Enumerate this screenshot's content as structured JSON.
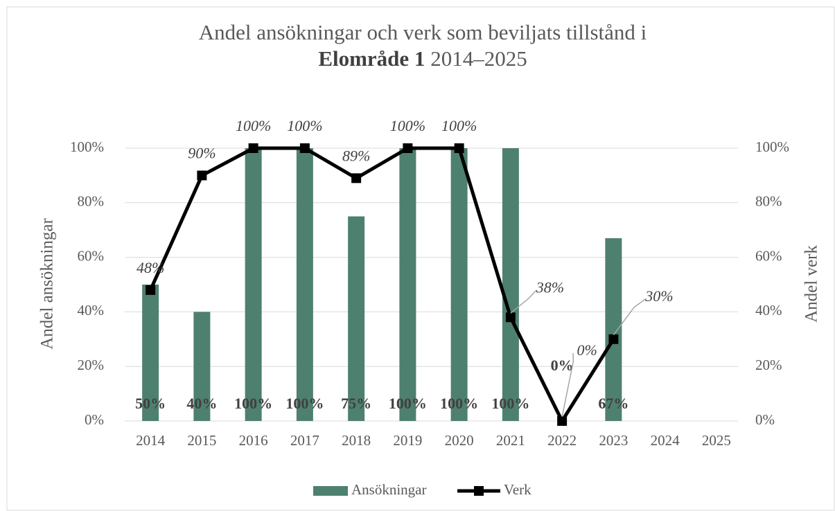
{
  "chart_data": {
    "type": "bar-line",
    "title": "Andel ansökningar och verk som beviljats tillstånd i",
    "title_bold": "Elområde 1",
    "title_rest": "2014–2025",
    "y_label": "Andel ansökningar",
    "y2_label": "Andel verk",
    "categories": [
      "2014",
      "2015",
      "2016",
      "2017",
      "2018",
      "2019",
      "2020",
      "2021",
      "2022",
      "2023",
      "2024",
      "2025"
    ],
    "series": [
      {
        "name": "Ansökningar",
        "type": "bar",
        "color": "#4e8070",
        "values": [
          50,
          40,
          100,
          100,
          75,
          100,
          100,
          100,
          0,
          67,
          null,
          null
        ],
        "value_labels": [
          "50%",
          "40%",
          "100%",
          "100%",
          "75%",
          "100%",
          "100%",
          "100%",
          "0%",
          "67%",
          null,
          null
        ]
      },
      {
        "name": "Verk",
        "type": "line",
        "axis": "y2",
        "color": "#000000",
        "values": [
          48,
          90,
          100,
          100,
          89,
          100,
          100,
          38,
          0,
          30,
          null,
          null
        ],
        "value_labels": [
          "48%",
          "90%",
          "100%",
          "100%",
          "89%",
          "100%",
          "100%",
          "38%",
          "0%",
          "30%",
          null,
          null
        ]
      }
    ],
    "ylim": [
      0,
      100
    ],
    "yticks": [
      {
        "value": 0,
        "label": "0%"
      },
      {
        "value": 20,
        "label": "20%"
      },
      {
        "value": 40,
        "label": "40%"
      },
      {
        "value": 60,
        "label": "60%"
      },
      {
        "value": 80,
        "label": "80%"
      },
      {
        "value": 100,
        "label": "100%"
      }
    ],
    "y2lim": [
      0,
      100
    ],
    "y2ticks": [
      {
        "value": 0,
        "label": "0%"
      },
      {
        "value": 20,
        "label": "20%"
      },
      {
        "value": 40,
        "label": "40%"
      },
      {
        "value": 60,
        "label": "60%"
      },
      {
        "value": 80,
        "label": "80%"
      },
      {
        "value": 100,
        "label": "100%"
      }
    ],
    "grid": true,
    "legend": "bottom"
  }
}
